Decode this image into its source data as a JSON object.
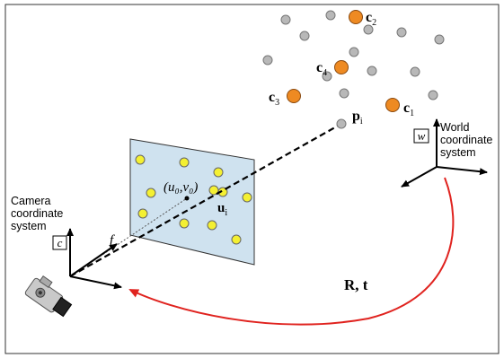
{
  "labels": {
    "camera_system": [
      "Camera",
      "coordinate",
      "system"
    ],
    "camera_axis": "c",
    "world_system": [
      "World",
      "coordinate",
      "system"
    ],
    "world_axis": "w",
    "focal": "f",
    "principal_point": "(u₀,v₀)",
    "image_point_base": "u",
    "image_point_sub": "i",
    "world_point_base": "p",
    "world_point_sub": "i",
    "transform": "R, t",
    "c1_base": "c",
    "c1_sub": "1",
    "c2_base": "c",
    "c2_sub": "2",
    "c3_base": "c",
    "c3_sub": "3",
    "c4_base": "c",
    "c4_sub": "4"
  },
  "colors": {
    "image_plane_fill": "#cfe2ef",
    "image_plane_stroke": "#333333",
    "image_point_fill": "#f4f032",
    "world_point_fill": "#b8b8b8",
    "control_point_fill": "#ee8a22",
    "transform_arrow": "#e0231f",
    "axis": "#000000"
  },
  "icons": {
    "camera": "camera-icon"
  }
}
